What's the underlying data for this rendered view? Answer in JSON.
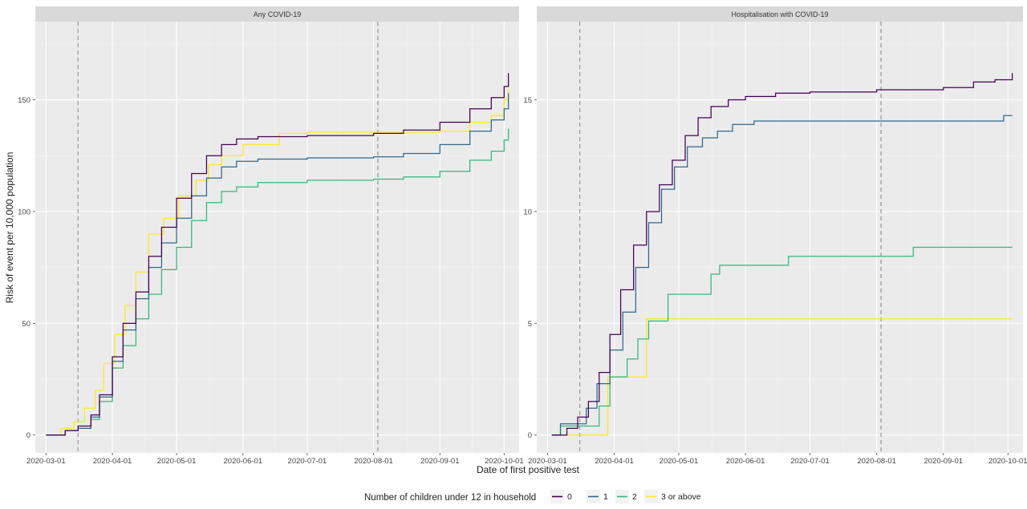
{
  "x_axis_label": "Date of first positive test",
  "y_axis_label": "Risk of event per 10,000 population",
  "legend": {
    "title": "Number of children under 12 in household",
    "entries": [
      {
        "label": "0",
        "color": "#440154"
      },
      {
        "label": "1",
        "color": "#31688e"
      },
      {
        "label": "2",
        "color": "#35b779"
      },
      {
        "label": "3 or above",
        "color": "#fde725"
      }
    ],
    "placement": "bottom"
  },
  "chart_data": [
    {
      "type": "line",
      "step": true,
      "title": "Any COVID-19",
      "xlabel": "Date of first positive test",
      "ylabel": "Risk of event per 10,000 population",
      "x_ticks": [
        "2020-03-01",
        "2020-04-01",
        "2020-05-01",
        "2020-06-01",
        "2020-07-01",
        "2020-08-01",
        "2020-09-01",
        "2020-10-01"
      ],
      "y_ticks": [
        0,
        50,
        100,
        150
      ],
      "xlim": [
        "2020-02-25",
        "2020-10-08"
      ],
      "ylim": [
        -8,
        185
      ],
      "grid": true,
      "reference_lines": [
        "2020-03-16",
        "2020-08-03"
      ],
      "series": [
        {
          "name": "0",
          "color": "#440154",
          "x": [
            "2020-03-01",
            "2020-03-10",
            "2020-03-16",
            "2020-03-22",
            "2020-03-26",
            "2020-04-01",
            "2020-04-06",
            "2020-04-12",
            "2020-04-18",
            "2020-04-24",
            "2020-05-01",
            "2020-05-08",
            "2020-05-15",
            "2020-05-22",
            "2020-05-29",
            "2020-06-08",
            "2020-07-01",
            "2020-08-01",
            "2020-08-15",
            "2020-09-01",
            "2020-09-15",
            "2020-09-25",
            "2020-10-01",
            "2020-10-03"
          ],
          "values": [
            0,
            2,
            4,
            9,
            18,
            35,
            50,
            64,
            80,
            93,
            106,
            117,
            125,
            130,
            132.5,
            133.5,
            134,
            135,
            136.5,
            140,
            146,
            151,
            156,
            162
          ]
        },
        {
          "name": "1",
          "color": "#31688e",
          "x": [
            "2020-03-01",
            "2020-03-10",
            "2020-03-16",
            "2020-03-22",
            "2020-03-26",
            "2020-04-01",
            "2020-04-06",
            "2020-04-12",
            "2020-04-18",
            "2020-04-24",
            "2020-05-01",
            "2020-05-08",
            "2020-05-15",
            "2020-05-22",
            "2020-05-29",
            "2020-06-08",
            "2020-07-01",
            "2020-08-01",
            "2020-08-15",
            "2020-09-01",
            "2020-09-15",
            "2020-09-25",
            "2020-10-01",
            "2020-10-03"
          ],
          "values": [
            0,
            2,
            3,
            8,
            17,
            33,
            47,
            61,
            75,
            86,
            97,
            107,
            115,
            120,
            122.5,
            123.5,
            124,
            124.5,
            126,
            130,
            136,
            141,
            146,
            153
          ]
        },
        {
          "name": "2",
          "color": "#35b779",
          "x": [
            "2020-03-01",
            "2020-03-10",
            "2020-03-16",
            "2020-03-22",
            "2020-03-26",
            "2020-04-01",
            "2020-04-06",
            "2020-04-12",
            "2020-04-18",
            "2020-04-24",
            "2020-05-01",
            "2020-05-08",
            "2020-05-15",
            "2020-05-22",
            "2020-05-29",
            "2020-06-08",
            "2020-07-01",
            "2020-08-01",
            "2020-08-15",
            "2020-09-01",
            "2020-09-15",
            "2020-09-25",
            "2020-10-01",
            "2020-10-03"
          ],
          "values": [
            0,
            2,
            3,
            7,
            15,
            30,
            40,
            52,
            63,
            74,
            84,
            96,
            104,
            109,
            111,
            113,
            114,
            114.5,
            115.5,
            118,
            123,
            127,
            132,
            137
          ]
        },
        {
          "name": "3 or above",
          "color": "#fde725",
          "x": [
            "2020-03-01",
            "2020-03-08",
            "2020-03-14",
            "2020-03-19",
            "2020-03-24",
            "2020-03-28",
            "2020-04-02",
            "2020-04-07",
            "2020-04-12",
            "2020-04-18",
            "2020-04-25",
            "2020-05-02",
            "2020-05-10",
            "2020-05-16",
            "2020-05-22",
            "2020-06-01",
            "2020-06-18",
            "2020-07-01",
            "2020-08-01",
            "2020-08-20",
            "2020-09-01",
            "2020-09-15",
            "2020-09-25",
            "2020-10-01",
            "2020-10-03"
          ],
          "values": [
            0,
            3,
            6,
            12,
            20,
            32,
            45,
            58,
            73,
            90,
            97,
            107,
            114,
            121,
            125,
            130,
            135,
            135.5,
            135.5,
            135.5,
            136,
            140,
            143,
            150,
            155
          ]
        }
      ]
    },
    {
      "type": "line",
      "step": true,
      "title": "Hospitalisation with COVID-19",
      "xlabel": "Date of first positive test",
      "ylabel": "Risk of event per 10,000 population",
      "x_ticks": [
        "2020-03-01",
        "2020-04-01",
        "2020-05-01",
        "2020-06-01",
        "2020-07-01",
        "2020-08-01",
        "2020-09-01",
        "2020-10-01"
      ],
      "y_ticks": [
        0,
        5,
        10,
        15
      ],
      "xlim": [
        "2020-02-25",
        "2020-10-08"
      ],
      "ylim": [
        -0.8,
        18.5
      ],
      "grid": true,
      "reference_lines": [
        "2020-03-16",
        "2020-08-03"
      ],
      "series": [
        {
          "name": "0",
          "color": "#440154",
          "x": [
            "2020-03-03",
            "2020-03-10",
            "2020-03-15",
            "2020-03-20",
            "2020-03-25",
            "2020-03-30",
            "2020-04-04",
            "2020-04-10",
            "2020-04-16",
            "2020-04-22",
            "2020-04-28",
            "2020-05-04",
            "2020-05-10",
            "2020-05-16",
            "2020-05-24",
            "2020-06-01",
            "2020-06-15",
            "2020-07-01",
            "2020-08-01",
            "2020-08-20",
            "2020-09-01",
            "2020-09-15",
            "2020-09-25",
            "2020-10-03"
          ],
          "values": [
            0,
            0.3,
            0.8,
            1.5,
            2.8,
            4.5,
            6.5,
            8.5,
            10,
            11.2,
            12.3,
            13.4,
            14.2,
            14.7,
            15,
            15.15,
            15.3,
            15.35,
            15.45,
            15.45,
            15.55,
            15.8,
            15.9,
            16.2
          ]
        },
        {
          "name": "1",
          "color": "#31688e",
          "x": [
            "2020-03-03",
            "2020-03-07",
            "2020-03-19",
            "2020-03-24",
            "2020-03-30",
            "2020-04-05",
            "2020-04-11",
            "2020-04-17",
            "2020-04-23",
            "2020-04-29",
            "2020-05-05",
            "2020-05-12",
            "2020-05-19",
            "2020-05-26",
            "2020-06-05",
            "2020-07-01",
            "2020-08-01",
            "2020-09-01",
            "2020-09-29",
            "2020-10-03"
          ],
          "values": [
            0,
            0.5,
            1.2,
            2.3,
            3.8,
            5.5,
            7.5,
            9.5,
            11,
            12,
            12.9,
            13.3,
            13.6,
            13.9,
            14.05,
            14.05,
            14.05,
            14.05,
            14.3,
            14.3
          ]
        },
        {
          "name": "2",
          "color": "#35b779",
          "x": [
            "2020-03-03",
            "2020-03-07",
            "2020-03-25",
            "2020-03-30",
            "2020-04-07",
            "2020-04-12",
            "2020-04-17",
            "2020-04-26",
            "2020-05-16",
            "2020-05-20",
            "2020-06-21",
            "2020-08-18",
            "2020-10-03"
          ],
          "values": [
            0,
            0.4,
            1.3,
            2.6,
            3.4,
            4.3,
            5.1,
            6.3,
            7.2,
            7.6,
            8.0,
            8.4,
            8.4
          ]
        },
        {
          "name": "3 or above",
          "color": "#fde725",
          "x": [
            "2020-03-03",
            "2020-03-27",
            "2020-03-29",
            "2020-04-12",
            "2020-04-16",
            "2020-10-03"
          ],
          "values": [
            0,
            0,
            2.6,
            2.6,
            5.2,
            5.2
          ]
        }
      ]
    }
  ]
}
